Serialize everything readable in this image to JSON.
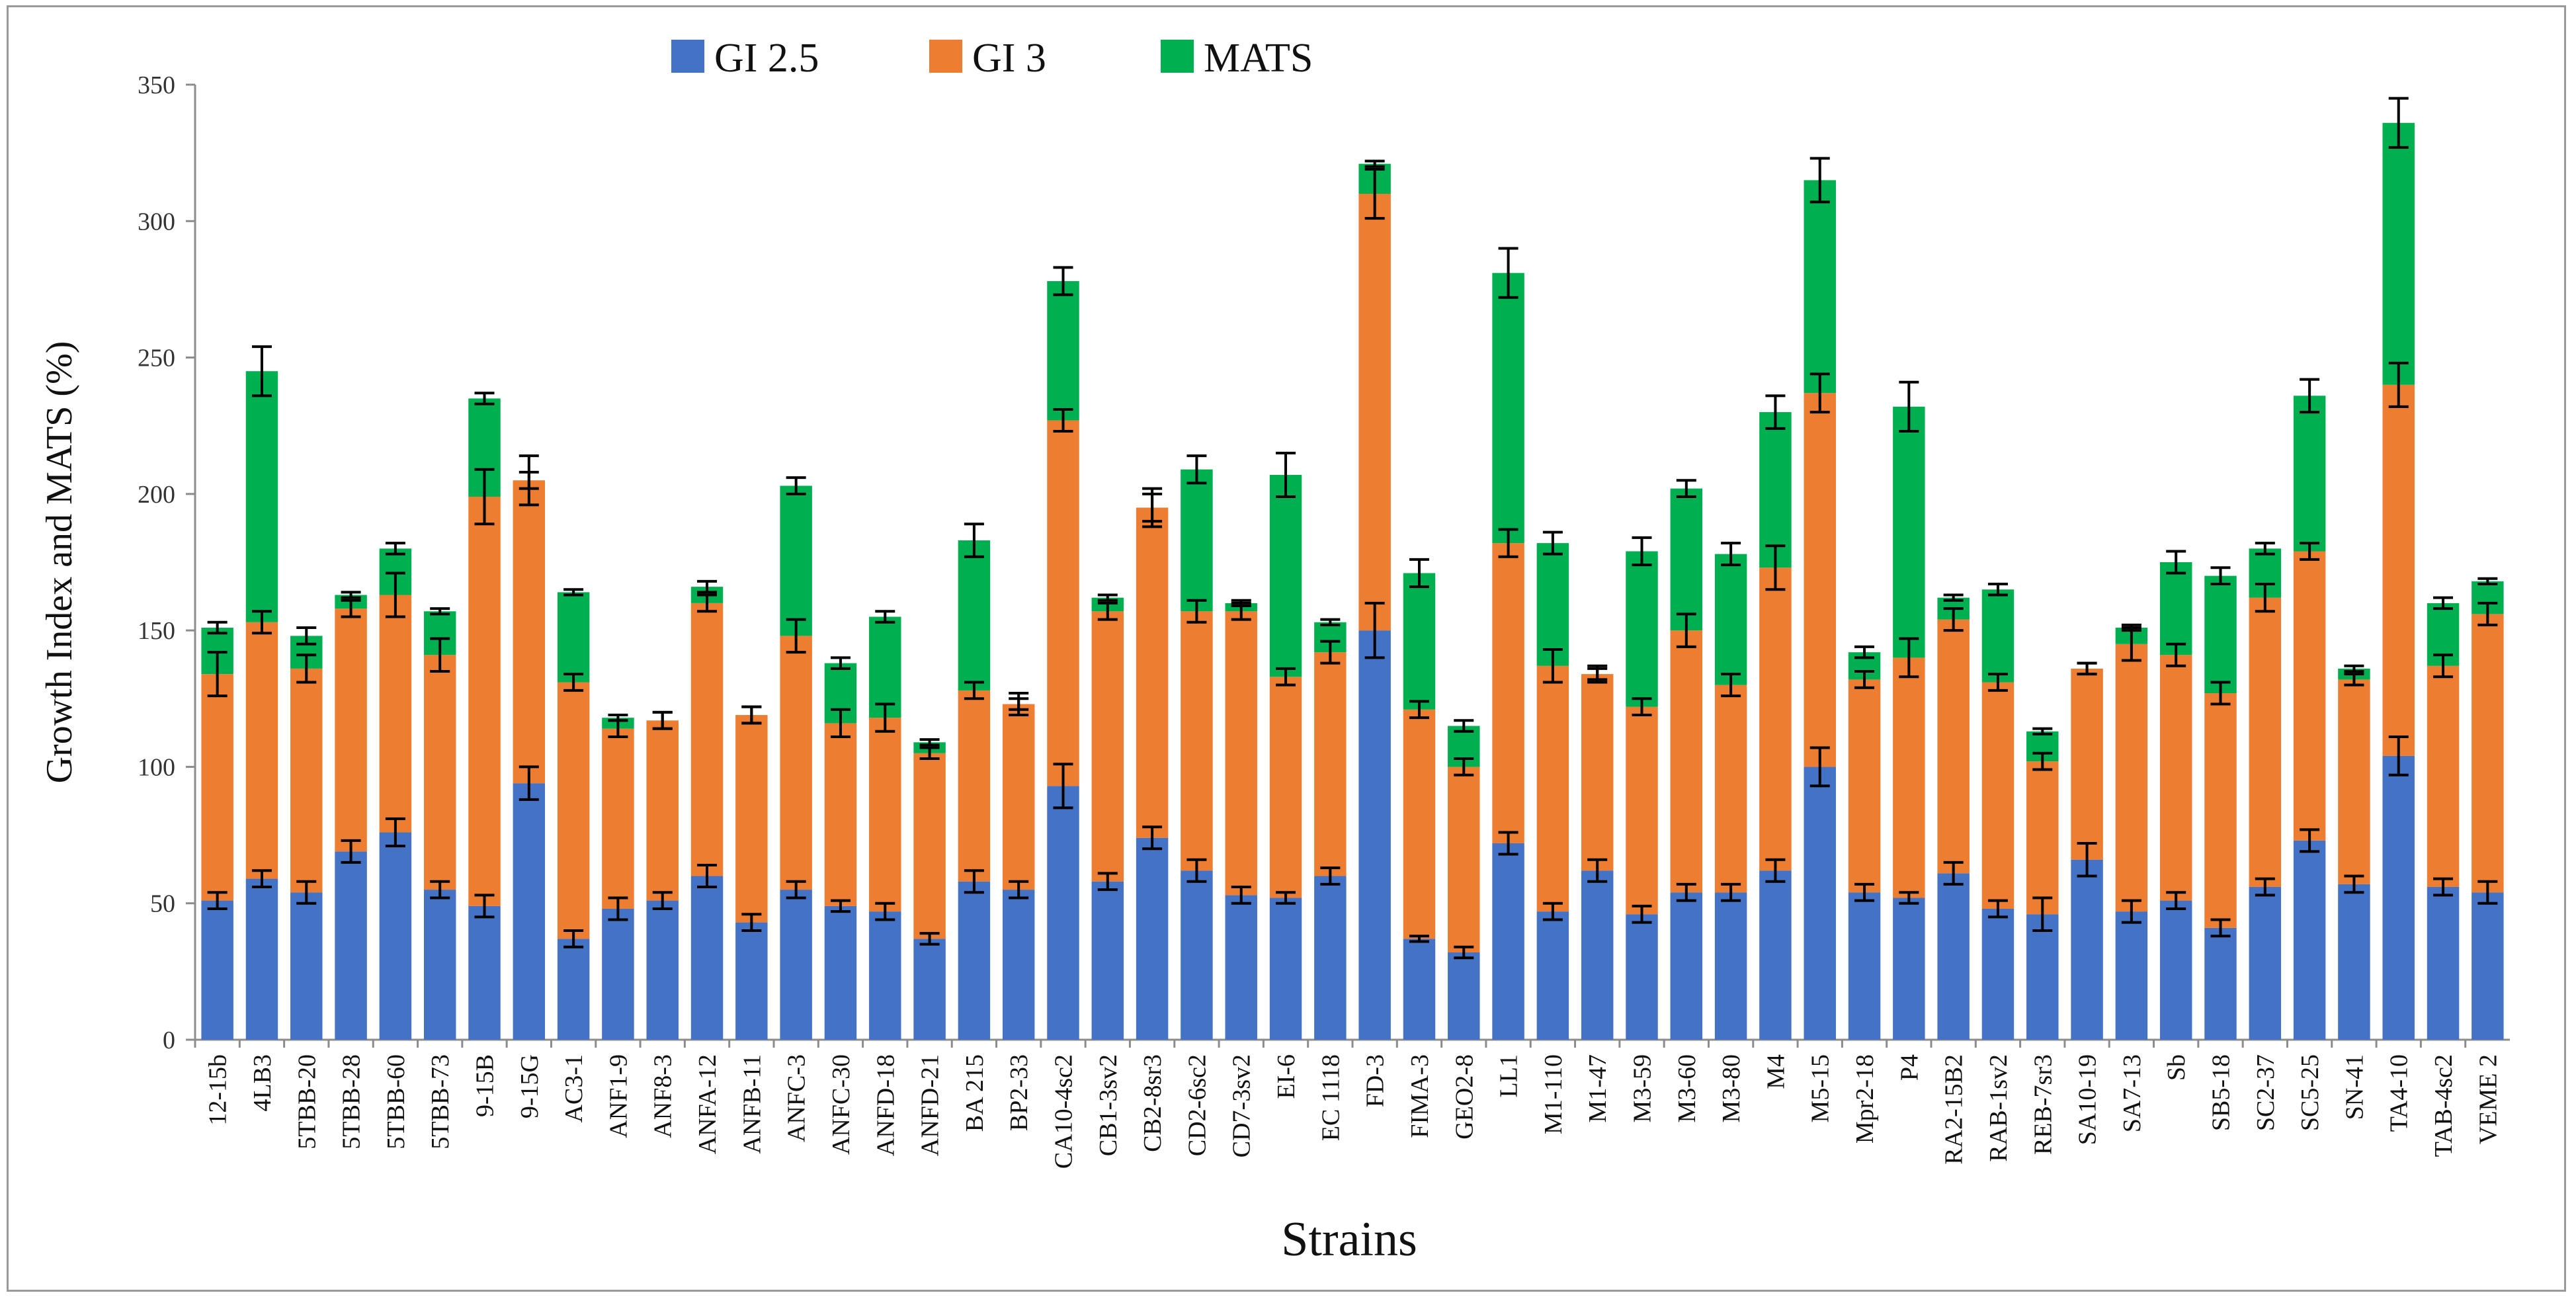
{
  "chart_data": {
    "type": "bar",
    "stacked": true,
    "title": "",
    "xlabel": "Strains",
    "ylabel": "Growth Index and MATS (%)",
    "ylim": [
      0,
      350
    ],
    "yticks": [
      0,
      50,
      100,
      150,
      200,
      250,
      300,
      350
    ],
    "grid": false,
    "legend_position": "top",
    "categories": [
      "12-15b",
      "4LB3",
      "5TBB-20",
      "5TBB-28",
      "5TBB-60",
      "5TBB-73",
      "9-15B",
      "9-15G",
      "AC3-1",
      "ANF1-9",
      "ANF8-3",
      "ANFA-12",
      "ANFB-11",
      "ANFC-3",
      "ANFC-30",
      "ANFD-18",
      "ANFD-21",
      "BA 215",
      "BP2-33",
      "CA10-4sc2",
      "CB1-3sv2",
      "CB2-8sr3",
      "CD2-6sc2",
      "CD7-3sv2",
      "EI-6",
      "EC 1118",
      "FD-3",
      "FIMA-3",
      "GEO2-8",
      "LL1",
      "M1-110",
      "M1-47",
      "M3-59",
      "M3-60",
      "M3-80",
      "M4",
      "M5-15",
      "Mpr2-18",
      "P4",
      "RA2-15B2",
      "RAB-1sv2",
      "REB-7sr3",
      "SA10-19",
      "SA7-13",
      "Sb",
      "SB5-18",
      "SC2-37",
      "SC5-25",
      "SN-41",
      "TA4-10",
      "TAB-4sc2",
      "VEME 2"
    ],
    "series": [
      {
        "name": "GI 2.5",
        "color": "#4472c4",
        "values": [
          51,
          59,
          54,
          69,
          76,
          55,
          49,
          94,
          37,
          48,
          51,
          60,
          43,
          55,
          49,
          47,
          37,
          58,
          55,
          93,
          58,
          74,
          62,
          53,
          52,
          60,
          150,
          37,
          32,
          72,
          47,
          62,
          46,
          54,
          54,
          62,
          100,
          54,
          52,
          61,
          48,
          46,
          66,
          47,
          51,
          41,
          56,
          73,
          57,
          104,
          56,
          54
        ]
      },
      {
        "name": "GI 3",
        "color": "#ed7d31",
        "values": [
          83,
          94,
          82,
          89,
          87,
          86,
          150,
          111,
          94,
          66,
          66,
          100,
          76,
          93,
          67,
          71,
          68,
          70,
          68,
          134,
          99,
          121,
          95,
          104,
          81,
          82,
          160,
          84,
          68,
          110,
          90,
          72,
          76,
          96,
          76,
          111,
          137,
          78,
          88,
          93,
          83,
          56,
          70,
          98,
          90,
          86,
          106,
          106,
          75,
          136,
          81,
          102
        ]
      },
      {
        "name": "MATS",
        "color": "#00b050",
        "values": [
          17,
          92,
          12,
          5,
          17,
          16,
          36,
          0,
          33,
          4,
          0,
          6,
          0,
          55,
          22,
          37,
          4,
          55,
          0,
          51,
          5,
          0,
          52,
          3,
          74,
          11,
          11,
          50,
          15,
          99,
          45,
          0,
          57,
          52,
          48,
          57,
          78,
          10,
          92,
          8,
          34,
          11,
          0,
          6,
          34,
          43,
          18,
          57,
          4,
          96,
          23,
          12
        ]
      }
    ],
    "error_bars": {
      "GI 2.5": [
        3,
        3,
        4,
        4,
        5,
        3,
        4,
        6,
        3,
        4,
        3,
        4,
        3,
        3,
        2,
        3,
        2,
        4,
        3,
        8,
        3,
        4,
        4,
        3,
        2,
        3,
        10,
        1,
        2,
        4,
        3,
        4,
        3,
        3,
        3,
        4,
        7,
        3,
        2,
        4,
        3,
        6,
        6,
        4,
        3,
        3,
        3,
        4,
        3,
        7,
        3,
        4
      ],
      "GI 3": [
        8,
        4,
        5,
        3,
        8,
        6,
        10,
        3,
        3,
        3,
        3,
        3,
        3,
        6,
        5,
        5,
        2,
        3,
        2,
        4,
        3,
        5,
        4,
        3,
        3,
        4,
        9,
        3,
        3,
        5,
        6,
        3,
        3,
        6,
        4,
        8,
        7,
        3,
        7,
        4,
        3,
        3,
        2,
        6,
        4,
        4,
        5,
        3,
        2,
        8,
        4,
        4
      ],
      "MATS": [
        2,
        9,
        3,
        1,
        2,
        1,
        2,
        9,
        1,
        1,
        3,
        2,
        3,
        3,
        2,
        2,
        1,
        6,
        4,
        5,
        1,
        7,
        5,
        1,
        8,
        1,
        1,
        5,
        2,
        9,
        4,
        2,
        5,
        3,
        4,
        6,
        8,
        2,
        9,
        1,
        2,
        1,
        2,
        1,
        4,
        3,
        2,
        6,
        1,
        9,
        2,
        1
      ]
    }
  },
  "legend": {
    "items": [
      {
        "label": "GI 2.5",
        "color": "#4472c4"
      },
      {
        "label": "GI 3",
        "color": "#ed7d31"
      },
      {
        "label": "MATS",
        "color": "#00b050"
      }
    ]
  }
}
